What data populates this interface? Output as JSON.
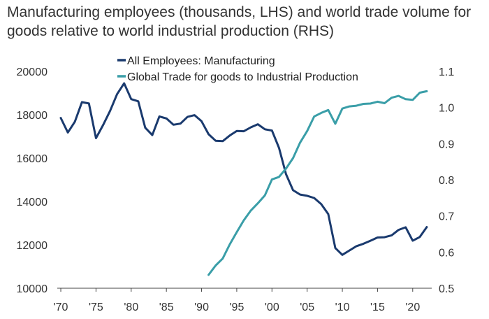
{
  "chart_data": {
    "type": "line",
    "title": "Manufacturing employees (thousands, LHS) and world trade volume for goods relative to world industrial production (RHS)",
    "x_tick_labels": [
      "'70",
      "'75",
      "'80",
      "'85",
      "'90",
      "'95",
      "'00",
      "'05",
      "'10",
      "'15",
      "'20"
    ],
    "x_ticks": [
      1970,
      1975,
      1980,
      1985,
      1990,
      1995,
      2000,
      2005,
      2010,
      2015,
      2020
    ],
    "xlim": [
      1969.5,
      2022.7
    ],
    "y_left": {
      "lim": [
        10000,
        20000
      ],
      "ticks": [
        10000,
        12000,
        14000,
        16000,
        18000,
        20000
      ],
      "tick_labels": [
        "10000",
        "12000",
        "14000",
        "16000",
        "18000",
        "20000"
      ]
    },
    "y_right": {
      "lim": [
        0.5,
        1.1
      ],
      "ticks": [
        0.5,
        0.6,
        0.7,
        0.8,
        0.9,
        1.0,
        1.1
      ],
      "tick_labels": [
        "0.5",
        "0.6",
        "0.7",
        "0.8",
        "0.9",
        "1.0",
        "1.1"
      ]
    },
    "legend_position": "top-center",
    "series": [
      {
        "name": "All Employees: Manufacturing",
        "axis": "left",
        "color": "#1a3a6e",
        "x": [
          1970,
          1971,
          1972,
          1973,
          1974,
          1975,
          1976,
          1977,
          1978,
          1979,
          1980,
          1981,
          1982,
          1983,
          1984,
          1985,
          1986,
          1987,
          1988,
          1989,
          1990,
          1991,
          1992,
          1993,
          1994,
          1995,
          1996,
          1997,
          1998,
          1999,
          2000,
          2001,
          2002,
          2003,
          2004,
          2005,
          2006,
          2007,
          2008,
          2009,
          2010,
          2011,
          2012,
          2013,
          2014,
          2015,
          2016,
          2017,
          2018,
          2019,
          2020,
          2021,
          2022
        ],
        "values": [
          17850,
          17180,
          17680,
          18580,
          18520,
          16920,
          17520,
          18180,
          18950,
          19450,
          18720,
          18620,
          17400,
          17060,
          17920,
          17830,
          17540,
          17590,
          17900,
          17980,
          17700,
          17100,
          16800,
          16780,
          17040,
          17250,
          17240,
          17420,
          17560,
          17330,
          17270,
          16470,
          15260,
          14520,
          14320,
          14260,
          14160,
          13880,
          13420,
          11850,
          11540,
          11740,
          11940,
          12050,
          12190,
          12340,
          12350,
          12440,
          12690,
          12810,
          12190,
          12360,
          12820
        ]
      },
      {
        "name": "Global Trade for goods to Industrial Production",
        "axis": "right",
        "color": "#3a9ea8",
        "x": [
          1991,
          1992,
          1993,
          1994,
          1995,
          1996,
          1997,
          1998,
          1999,
          2000,
          2001,
          2002,
          2003,
          2004,
          2005,
          2006,
          2007,
          2008,
          2009,
          2010,
          2011,
          2012,
          2013,
          2014,
          2015,
          2016,
          2017,
          2018,
          2019,
          2020,
          2021,
          2022
        ],
        "values": [
          0.537,
          0.563,
          0.582,
          0.621,
          0.655,
          0.688,
          0.715,
          0.735,
          0.757,
          0.801,
          0.808,
          0.831,
          0.86,
          0.903,
          0.935,
          0.975,
          0.985,
          0.993,
          0.955,
          0.997,
          1.003,
          1.005,
          1.01,
          1.011,
          1.016,
          1.012,
          1.027,
          1.032,
          1.023,
          1.021,
          1.041,
          1.045
        ]
      }
    ]
  }
}
